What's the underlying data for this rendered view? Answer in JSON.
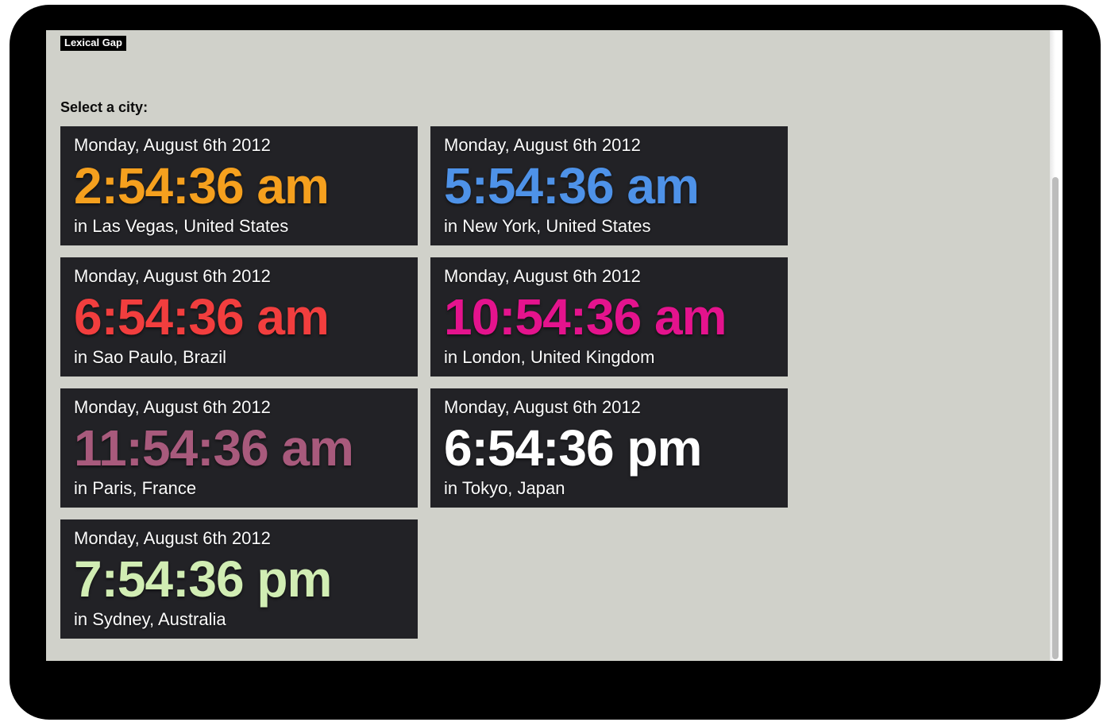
{
  "page": {
    "brand_label": "Lexical Gap",
    "heading": "Select a city:"
  },
  "colors": {
    "page_background": "#d0d1ca",
    "card_background": "#222226",
    "card_text": "#fbfbfb",
    "frame": "#000000",
    "scrollbar_thumb": "#bcbcbc"
  },
  "clocks": [
    {
      "date": "Monday, August 6th 2012",
      "time": "2:54:36 am",
      "location": "in Las Vegas, United States",
      "time_color": "#f5a01e"
    },
    {
      "date": "Monday, August 6th 2012",
      "time": "5:54:36 am",
      "location": "in New York, United States",
      "time_color": "#4e92e8"
    },
    {
      "date": "Monday, August 6th 2012",
      "time": "6:54:36 am",
      "location": "in Sao Paulo, Brazil",
      "time_color": "#f23e3e"
    },
    {
      "date": "Monday, August 6th 2012",
      "time": "10:54:36 am",
      "location": "in London, United Kingdom",
      "time_color": "#e4138d"
    },
    {
      "date": "Monday, August 6th 2012",
      "time": "11:54:36 am",
      "location": "in Paris, France",
      "time_color": "#a85a7c"
    },
    {
      "date": "Monday, August 6th 2012",
      "time": "6:54:36 pm",
      "location": "in Tokyo, Japan",
      "time_color": "#ffffff"
    },
    {
      "date": "Monday, August 6th 2012",
      "time": "7:54:36 pm",
      "location": "in Sydney, Australia",
      "time_color": "#d1edb3"
    }
  ]
}
